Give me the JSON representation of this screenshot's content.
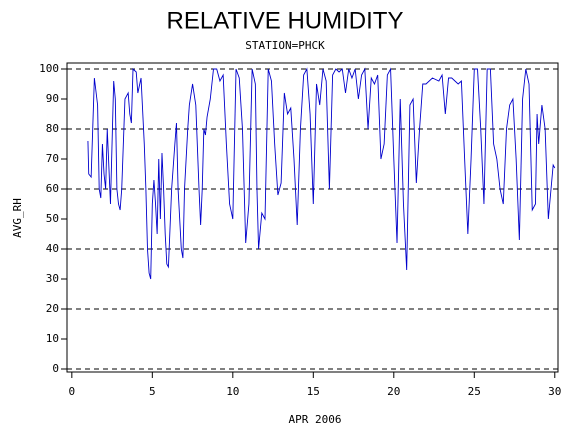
{
  "chart_data": {
    "type": "line",
    "title": "RELATIVE HUMIDITY",
    "subtitle": "STATION=PHCK",
    "x_label": "APR 2006",
    "y_label": "AVG_RH",
    "xlim": [
      -0.3,
      30.2
    ],
    "xticks": [
      0,
      5,
      10,
      15,
      20,
      25,
      30
    ],
    "ylim": [
      -1,
      102
    ],
    "yticks": [
      0,
      10,
      20,
      30,
      40,
      50,
      60,
      70,
      80,
      90,
      100
    ],
    "ygrid": [
      0,
      20,
      40,
      60,
      80,
      100
    ],
    "series": [
      {
        "name": "AVG_RH",
        "color": "#0000cc",
        "x": [
          1.0,
          1.05,
          1.2,
          1.4,
          1.6,
          1.7,
          1.8,
          1.9,
          2.0,
          2.1,
          2.2,
          2.4,
          2.6,
          2.7,
          2.8,
          2.9,
          3.0,
          3.1,
          3.3,
          3.5,
          3.6,
          3.7,
          3.8,
          4.0,
          4.1,
          4.3,
          4.5,
          4.6,
          4.7,
          4.8,
          4.9,
          5.0,
          5.1,
          5.2,
          5.3,
          5.4,
          5.5,
          5.6,
          5.7,
          5.8,
          5.9,
          6.0,
          6.2,
          6.4,
          6.5,
          6.6,
          6.7,
          6.8,
          6.9,
          7.0,
          7.2,
          7.3,
          7.5,
          7.7,
          7.9,
          8.0,
          8.1,
          8.2,
          8.3,
          8.4,
          8.6,
          8.7,
          8.8,
          9.0,
          9.2,
          9.4,
          9.6,
          9.8,
          10.0,
          10.2,
          10.4,
          10.6,
          10.8,
          11.0,
          11.2,
          11.4,
          11.5,
          11.6,
          11.8,
          12.0,
          12.2,
          12.4,
          12.6,
          12.8,
          13.0,
          13.2,
          13.4,
          13.6,
          13.8,
          14.0,
          14.2,
          14.4,
          14.6,
          14.8,
          15.0,
          15.2,
          15.4,
          15.6,
          15.8,
          16.0,
          16.2,
          16.4,
          16.6,
          16.8,
          17.0,
          17.2,
          17.4,
          17.6,
          17.8,
          18.0,
          18.2,
          18.4,
          18.6,
          18.8,
          19.0,
          19.2,
          19.4,
          19.6,
          19.8,
          20.0,
          20.2,
          20.4,
          20.6,
          20.8,
          21.0,
          21.2,
          21.4,
          21.6,
          21.8,
          22.0,
          22.4,
          22.8,
          23.0,
          23.2,
          23.4,
          23.6,
          23.8,
          24.0,
          24.2,
          24.4,
          24.6,
          24.8,
          25.0,
          25.2,
          25.4,
          25.6,
          25.8,
          26.0,
          26.2,
          26.4,
          26.6,
          26.8,
          27.0,
          27.2,
          27.4,
          27.6,
          27.8,
          28.0,
          28.2,
          28.4,
          28.6,
          28.8,
          28.9,
          29.0,
          29.2,
          29.4,
          29.6,
          29.8,
          29.9,
          30.0
        ],
        "values": [
          76,
          65,
          64,
          97,
          88,
          60,
          57,
          75,
          65,
          60,
          80,
          55,
          96,
          90,
          60,
          55,
          53,
          60,
          90,
          92,
          85,
          82,
          100,
          99,
          92,
          97,
          75,
          60,
          40,
          32,
          30,
          55,
          63,
          55,
          45,
          70,
          50,
          72,
          60,
          45,
          35,
          34,
          60,
          75,
          82,
          60,
          50,
          40,
          37,
          60,
          80,
          88,
          95,
          88,
          60,
          48,
          60,
          80,
          78,
          84,
          90,
          95,
          100,
          100,
          96,
          98,
          75,
          55,
          50,
          100,
          97,
          80,
          42,
          55,
          100,
          95,
          60,
          40,
          52,
          50,
          100,
          96,
          75,
          58,
          62,
          92,
          85,
          87,
          70,
          48,
          80,
          98,
          100,
          85,
          55,
          95,
          88,
          100,
          96,
          60,
          98,
          100,
          99,
          100,
          92,
          100,
          97,
          100,
          90,
          98,
          100,
          80,
          97,
          95,
          98,
          70,
          75,
          98,
          100,
          70,
          42,
          90,
          55,
          33,
          88,
          90,
          62,
          80,
          95,
          95,
          97,
          96,
          98,
          85,
          97,
          97,
          96,
          95,
          96,
          70,
          45,
          70,
          100,
          100,
          80,
          55,
          100,
          100,
          75,
          70,
          60,
          55,
          80,
          88,
          90,
          70,
          43,
          90,
          100,
          95,
          53,
          55,
          85,
          75,
          88,
          80,
          50,
          62,
          68,
          67
        ]
      }
    ]
  }
}
